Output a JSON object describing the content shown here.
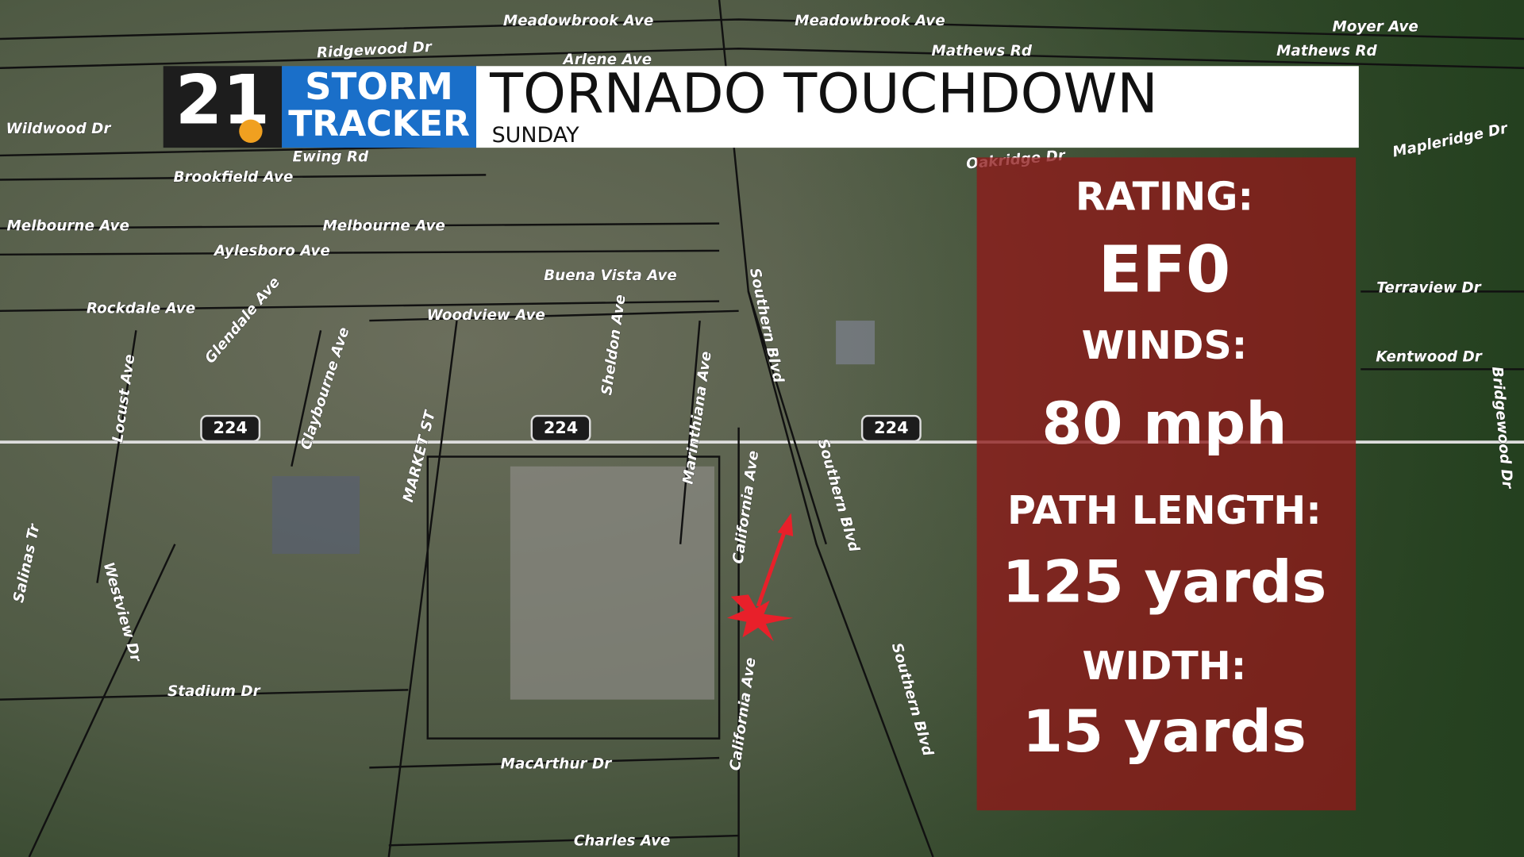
{
  "header": {
    "logo_number": "21",
    "logo_line1": "STORM",
    "logo_line2": "TRACKER",
    "title": "TORNADO TOUCHDOWN",
    "subtitle": "SUNDAY"
  },
  "stats": [
    {
      "label": "RATING:",
      "value": "EF0"
    },
    {
      "label": "WINDS:",
      "value": "80 mph"
    },
    {
      "label": "PATH LENGTH:",
      "value": "125 yards"
    },
    {
      "label": "WIDTH:",
      "value": "15 yards"
    }
  ],
  "map": {
    "street_labels": [
      "Meadowbrook Ave",
      "Meadowbrook Ave",
      "Ridgewood Dr",
      "Arlene Ave",
      "Mathews Rd",
      "Mathews Rd",
      "Moyer Ave",
      "Wildwood Dr",
      "Ewing Rd",
      "Brookfield Ave",
      "Melbourne Ave",
      "Melbourne Ave",
      "Aylesboro Ave",
      "Buena Vista Ave",
      "Rockdale Ave",
      "Woodview Ave",
      "Glendale Ave",
      "Sheldon Ave",
      "Southern Blvd",
      "Marinthiana Ave",
      "Claybourne Ave",
      "Locust Ave",
      "MARKET ST",
      "California Ave",
      "Southern Blvd",
      "Salinas Tr",
      "Westview Dr",
      "Stadium Dr",
      "California Ave",
      "Southern Blvd",
      "MacArthur Dr",
      "Charles Ave",
      "Oakridge Dr",
      "Mapleridge Dr",
      "Terraview Dr",
      "Kentwood Dr",
      "Bridgewood Dr"
    ],
    "route_shields": [
      "224",
      "224",
      "224"
    ]
  }
}
